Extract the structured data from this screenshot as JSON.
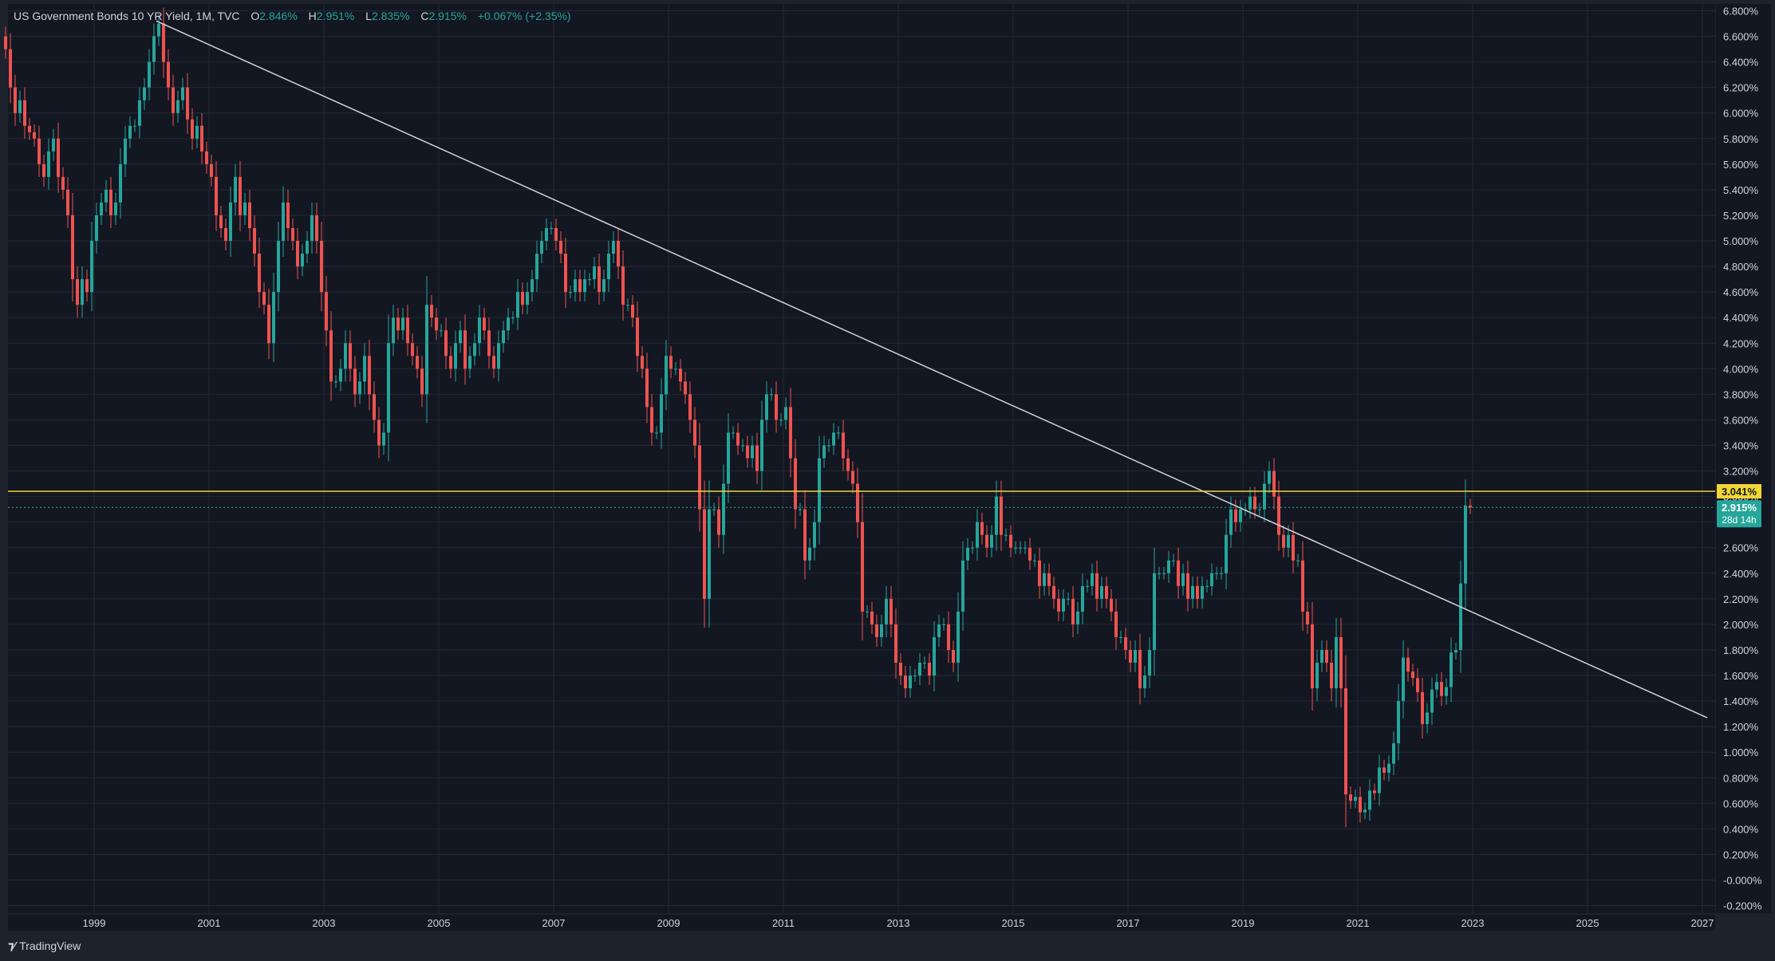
{
  "header": {
    "symbol": "US Government Bonds 10 YR Yield, 1M, TVC",
    "open_label": "O",
    "open_value": "2.846%",
    "high_label": "H",
    "high_value": "2.951%",
    "low_label": "L",
    "low_value": "2.835%",
    "close_label": "C",
    "close_value": "2.915%",
    "change": "+0.067% (+2.35%)"
  },
  "brand": {
    "name": "TradingView"
  },
  "colors": {
    "background": "#1e222d",
    "panel": "#131722",
    "grid": "#242836",
    "up": "#26a69a",
    "down": "#ef5350",
    "trendline": "#d1d4dc",
    "level_line": "#f2d633",
    "current_price_line": "#26a69a"
  },
  "price_labels": {
    "level": "3.041%",
    "current": "2.915%",
    "countdown": "28d 14h"
  },
  "chart_data": {
    "type": "candlestick",
    "title": "US Government Bonds 10 YR Yield, 1M, TVC",
    "y_unit": "%",
    "ylim": [
      -0.25,
      6.85
    ],
    "y_ticks": [
      "6.800%",
      "6.600%",
      "6.400%",
      "6.200%",
      "6.000%",
      "5.800%",
      "5.600%",
      "5.400%",
      "5.200%",
      "5.000%",
      "4.800%",
      "4.600%",
      "4.400%",
      "4.200%",
      "4.000%",
      "3.800%",
      "3.600%",
      "3.400%",
      "3.200%",
      "3.000%",
      "2.800%",
      "2.600%",
      "2.400%",
      "2.200%",
      "2.000%",
      "1.800%",
      "1.600%",
      "1.400%",
      "1.200%",
      "1.000%",
      "0.800%",
      "0.600%",
      "0.400%",
      "0.200%",
      "-0.000%",
      "-0.200%"
    ],
    "x_ticks": [
      "1999",
      "2001",
      "2003",
      "2005",
      "2007",
      "2009",
      "2011",
      "2013",
      "2015",
      "2017",
      "2019",
      "2021",
      "2023",
      "2025",
      "2027"
    ],
    "xlim": [
      1997.5,
      2027.2
    ],
    "grid": true,
    "start": "1997-06",
    "interval": "1M",
    "close": [
      6.5,
      6.2,
      6.0,
      6.1,
      5.9,
      5.85,
      5.8,
      5.6,
      5.5,
      5.7,
      5.8,
      5.5,
      5.4,
      5.2,
      4.7,
      4.5,
      4.7,
      4.6,
      5.0,
      5.2,
      5.3,
      5.4,
      5.2,
      5.3,
      5.6,
      5.8,
      5.9,
      5.9,
      6.1,
      6.2,
      6.4,
      6.6,
      6.7,
      6.4,
      6.2,
      6.0,
      6.1,
      6.2,
      5.95,
      5.8,
      5.9,
      5.7,
      5.6,
      5.5,
      5.2,
      5.1,
      5.0,
      5.3,
      5.5,
      5.2,
      5.3,
      5.1,
      4.9,
      4.6,
      4.5,
      4.2,
      4.6,
      5.0,
      5.3,
      5.1,
      5.0,
      4.8,
      4.9,
      5.0,
      5.2,
      5.0,
      4.6,
      4.3,
      3.9,
      3.9,
      4.0,
      4.2,
      4.0,
      3.8,
      3.9,
      4.1,
      3.8,
      3.6,
      3.4,
      3.5,
      4.2,
      4.4,
      4.3,
      4.4,
      4.2,
      4.1,
      4.0,
      3.8,
      4.5,
      4.4,
      4.3,
      4.3,
      4.1,
      4.0,
      4.2,
      4.3,
      4.0,
      4.1,
      4.2,
      4.4,
      4.3,
      4.1,
      4.0,
      4.2,
      4.3,
      4.4,
      4.4,
      4.6,
      4.5,
      4.6,
      4.7,
      4.9,
      5.0,
      5.1,
      5.1,
      5.0,
      4.9,
      4.6,
      4.6,
      4.7,
      4.6,
      4.7,
      4.7,
      4.8,
      4.6,
      4.7,
      4.9,
      5.0,
      4.8,
      4.5,
      4.5,
      4.4,
      4.1,
      4.0,
      3.7,
      3.5,
      3.5,
      3.8,
      4.1,
      4.0,
      4.0,
      3.9,
      3.8,
      3.6,
      3.4,
      2.9,
      2.2,
      2.9,
      2.9,
      2.7,
      3.1,
      3.5,
      3.5,
      3.4,
      3.4,
      3.3,
      3.4,
      3.2,
      3.6,
      3.8,
      3.8,
      3.6,
      3.6,
      3.7,
      3.3,
      2.9,
      2.9,
      2.5,
      2.6,
      2.8,
      3.3,
      3.4,
      3.4,
      3.5,
      3.5,
      3.3,
      3.2,
      3.1,
      2.8,
      2.1,
      2.1,
      2.0,
      1.9,
      2.0,
      2.2,
      2.0,
      1.7,
      1.6,
      1.5,
      1.6,
      1.6,
      1.7,
      1.7,
      1.6,
      1.9,
      2.0,
      2.0,
      1.8,
      1.7,
      2.1,
      2.5,
      2.6,
      2.6,
      2.8,
      2.7,
      2.6,
      2.7,
      3.0,
      2.7,
      2.7,
      2.6,
      2.6,
      2.6,
      2.6,
      2.5,
      2.5,
      2.3,
      2.4,
      2.3,
      2.2,
      2.1,
      2.2,
      2.2,
      2.0,
      2.1,
      2.3,
      2.3,
      2.4,
      2.2,
      2.3,
      2.2,
      2.1,
      1.9,
      1.9,
      1.8,
      1.7,
      1.8,
      1.5,
      1.6,
      1.8,
      2.4,
      2.4,
      2.4,
      2.5,
      2.5,
      2.3,
      2.4,
      2.2,
      2.3,
      2.2,
      2.3,
      2.3,
      2.4,
      2.4,
      2.4,
      2.7,
      2.9,
      2.8,
      2.9,
      2.9,
      3.0,
      2.9,
      2.9,
      3.1,
      3.2,
      3.0,
      2.7,
      2.6,
      2.7,
      2.5,
      2.5,
      2.1,
      2.0,
      1.5,
      1.7,
      1.8,
      1.7,
      1.5,
      1.9,
      1.5,
      0.67,
      0.62,
      0.65,
      0.53,
      0.55,
      0.7,
      0.68,
      0.88,
      0.84,
      0.91,
      1.07,
      1.4,
      1.74,
      1.63,
      1.58,
      1.47,
      1.22,
      1.31,
      1.49,
      1.55,
      1.44,
      1.51,
      1.78,
      1.8,
      2.32,
      2.93,
      2.915
    ],
    "trendlines": [
      {
        "from": [
          "2000-02",
          6.72
        ],
        "to": [
          "2027-02",
          1.27
        ]
      }
    ],
    "horizontal_levels": [
      3.041
    ],
    "last_value": 2.915
  }
}
